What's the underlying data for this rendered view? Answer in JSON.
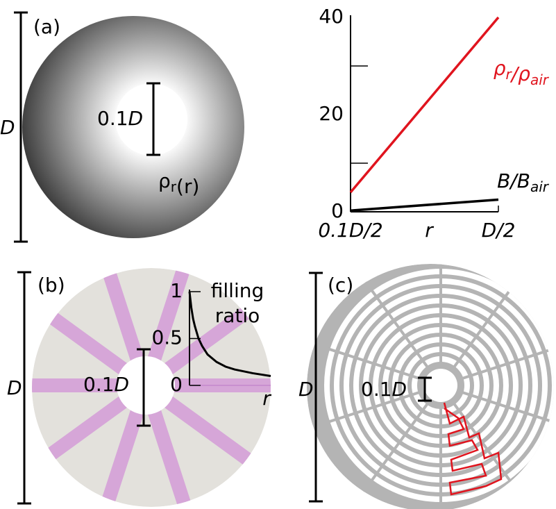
{
  "panels": {
    "a": {
      "label": "(a)",
      "outer_dimension": "D",
      "inner_dimension": [
        [
          "0.1"
        ],
        [
          "D"
        ]
      ],
      "density_label": [
        [
          "ρ",
          "r"
        ],
        [
          "(r)"
        ]
      ]
    },
    "b": {
      "label": "(b)",
      "outer_dimension": "D",
      "inner_dimension": [
        [
          "0.1"
        ],
        [
          "D"
        ]
      ]
    },
    "c": {
      "label": "(c)",
      "outer_dimension": "D",
      "inner_dimension": [
        [
          "0.1"
        ],
        [
          "D"
        ]
      ]
    }
  },
  "chart_data": [
    {
      "type": "line",
      "x": [
        0.05,
        0.5
      ],
      "xlim": [
        0.05,
        0.5
      ],
      "xticks": [
        {
          "value": 0.05,
          "label": "0.1D/2"
        },
        {
          "value": 0.5,
          "label": "D/2"
        }
      ],
      "xlabel": "r",
      "ylim": [
        0,
        40
      ],
      "yticks": [
        0,
        20,
        40
      ],
      "minor_yticks": [
        10,
        30
      ],
      "series": [
        {
          "name_parts": [
            [
              "ρ",
              "r"
            ],
            [
              "/ρ",
              "air"
            ]
          ],
          "color": "#e0141e",
          "values": [
            4,
            40
          ]
        },
        {
          "name_parts": [
            [
              "B/B",
              "air"
            ]
          ],
          "color": "#000000",
          "values": [
            0.25,
            2.5
          ]
        }
      ]
    },
    {
      "type": "line",
      "x": [
        0.05,
        0.06,
        0.07,
        0.08,
        0.1,
        0.12,
        0.15,
        0.2,
        0.25,
        0.3,
        0.4,
        0.5
      ],
      "xlim": [
        0.05,
        0.5
      ],
      "xlabel": "r",
      "ylim": [
        0,
        1
      ],
      "yticks": [
        0,
        0.5,
        1
      ],
      "ylabel_lines": [
        "filling",
        "ratio"
      ],
      "series": [
        {
          "color": "#000000",
          "values": [
            1,
            0.83,
            0.71,
            0.63,
            0.5,
            0.42,
            0.33,
            0.25,
            0.2,
            0.17,
            0.13,
            0.1
          ]
        }
      ]
    }
  ]
}
